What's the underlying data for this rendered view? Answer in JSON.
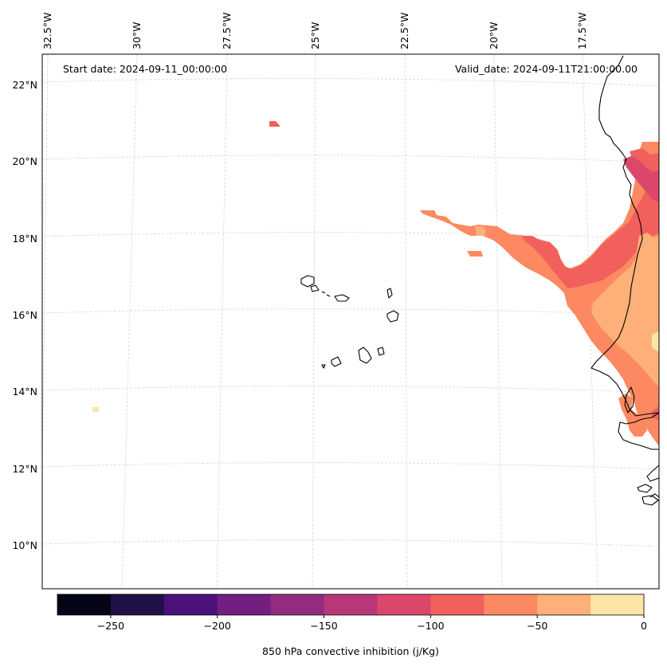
{
  "map": {
    "start_date_label": "Start date: 2024-09-11_00:00:00",
    "valid_date_label": "Valid_date: 2024-09-11T21:00:00.00",
    "lon_labels": [
      "32.5°W",
      "30°W",
      "27.5°W",
      "25°W",
      "22.5°W",
      "20°W",
      "17.5°W"
    ],
    "lat_labels": [
      "22°N",
      "20°N",
      "18°N",
      "16°N",
      "14°N",
      "12°N",
      "10°N"
    ]
  },
  "colorbar": {
    "label": "850 hPa convective inhibition (j/Kg)",
    "tick_labels": [
      "−250",
      "−200",
      "−150",
      "−100",
      "−50",
      "0"
    ],
    "levels": [
      -275,
      -250,
      -225,
      -200,
      -175,
      -150,
      -125,
      -100,
      -75,
      -50,
      -25,
      0
    ],
    "colors": [
      "#050416",
      "#1f1147",
      "#4c117a",
      "#721f81",
      "#932b80",
      "#b83779",
      "#db476a",
      "#f1605d",
      "#fc8961",
      "#feb078",
      "#fde5a7"
    ]
  },
  "colors": {
    "frame": "#000000",
    "grid": "#d0d0d0",
    "coast": "#000000"
  }
}
